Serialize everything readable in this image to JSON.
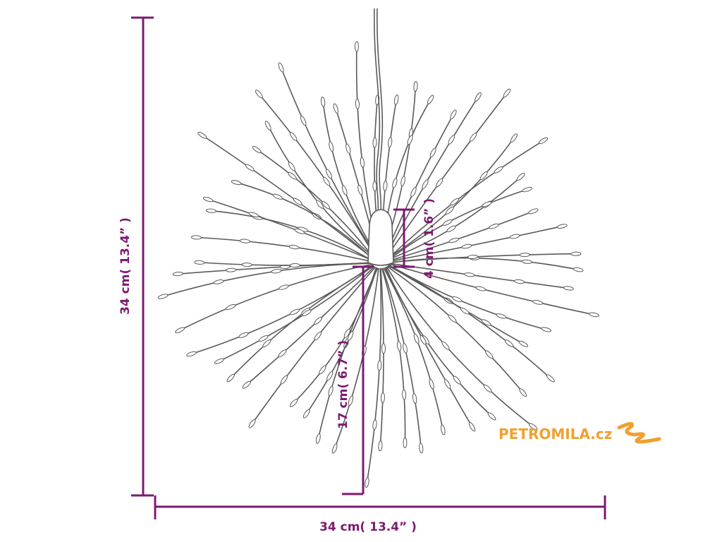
{
  "dimensions": {
    "height": "34 cm( 13.4” )",
    "width": "34 cm( 13.4” )",
    "cap_height": "4 cm( 1.6” )",
    "arm_length": "17 cm( 6.7” )"
  },
  "logo": {
    "text": "PETROMILA.cz"
  }
}
